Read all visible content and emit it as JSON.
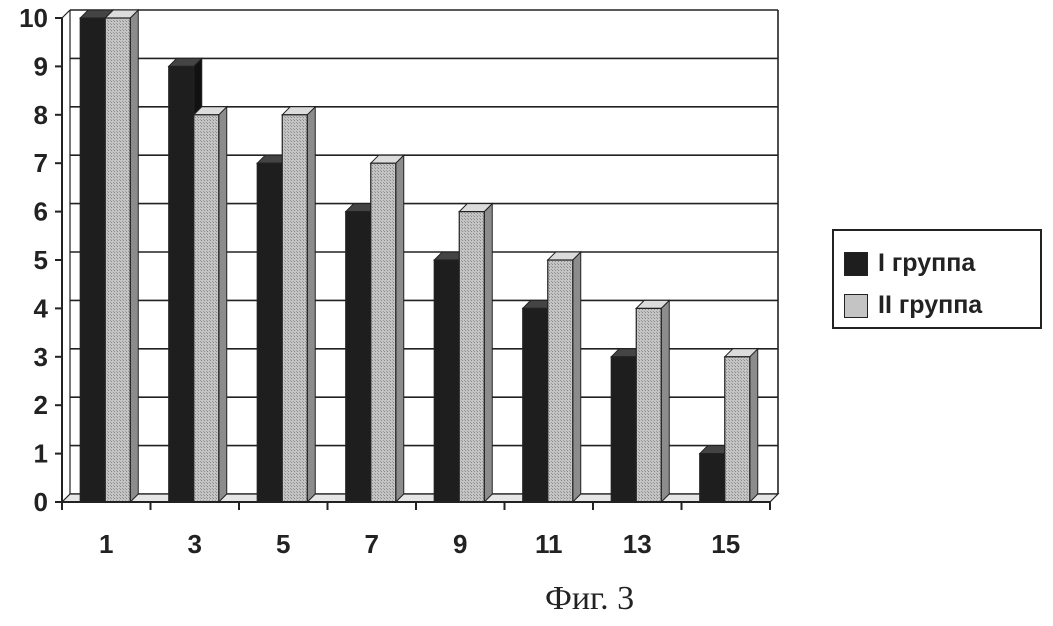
{
  "chart_data": {
    "type": "bar",
    "categories": [
      "1",
      "3",
      "5",
      "7",
      "9",
      "11",
      "13",
      "15"
    ],
    "series": [
      {
        "name": "I группа",
        "values": [
          10,
          9,
          7,
          6,
          5,
          4,
          3,
          1
        ],
        "color": "#1e1e1e"
      },
      {
        "name": "II группа",
        "values": [
          10,
          8,
          8,
          7,
          6,
          5,
          4,
          3
        ],
        "color": "#bdbdbd"
      }
    ],
    "y_ticks": [
      "0",
      "1",
      "2",
      "3",
      "4",
      "5",
      "6",
      "7",
      "8",
      "9",
      "10"
    ],
    "ylim": [
      0,
      10
    ],
    "grid": true,
    "legend": "right",
    "style": "3d-columns"
  },
  "caption": "Фиг. 3"
}
